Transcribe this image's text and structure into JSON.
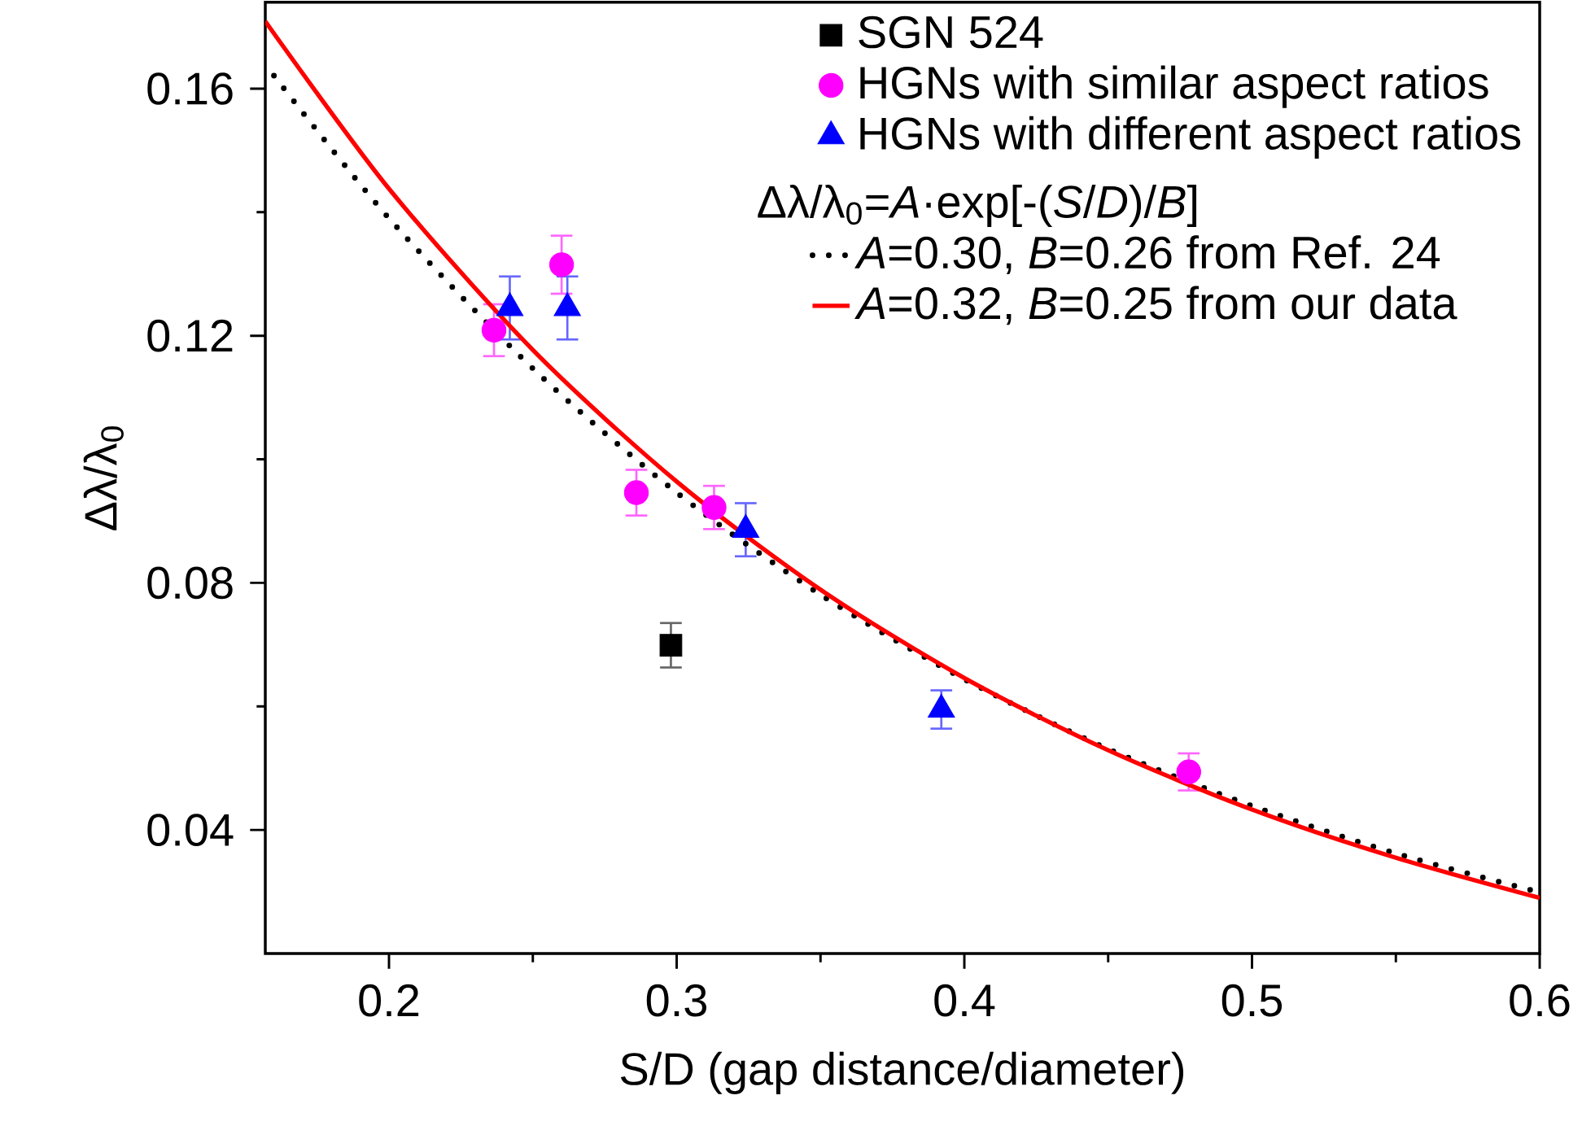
{
  "chart_data": {
    "type": "scatter",
    "xlabel": "S/D (gap distance/diameter)",
    "ylabel": "Δλ/λ$_{0}$",
    "xlim": [
      0.157,
      0.6
    ],
    "ylim": [
      0.02,
      0.174
    ],
    "xticks": [
      0.2,
      0.3,
      0.4,
      0.5,
      0.6
    ],
    "yticks": [
      0.04,
      0.08,
      0.12,
      0.16
    ],
    "legend": "top right",
    "annotations": [
      "Δλ/λ$_{0}$=*A*·exp[-(*S*/*D*)/*B*]"
    ],
    "series": [
      {
        "name": "SGN 524",
        "color": "#000000",
        "marker": "square",
        "x": [
          0.298
        ],
        "values": [
          0.0699
        ],
        "errors": [
          0.0036
        ]
      },
      {
        "name": "HGNs with similar aspect ratios",
        "color": "#ff00ff",
        "marker": "circle",
        "x": [
          0.2365,
          0.26,
          0.286,
          0.313,
          0.478
        ],
        "values": [
          0.1209,
          0.1315,
          0.0946,
          0.0922,
          0.0494
        ],
        "errors": [
          0.0042,
          0.0047,
          0.0037,
          0.0035,
          0.003
        ]
      },
      {
        "name": "HGNs with different aspect ratios",
        "color": "#0000ff",
        "marker": "triangle",
        "x": [
          0.242,
          0.262,
          0.324,
          0.392
        ],
        "values": [
          0.1245,
          0.1245,
          0.0886,
          0.0595
        ],
        "errors": [
          0.0051,
          0.0051,
          0.0043,
          0.0031
        ]
      },
      {
        "name": "*A*=0.30, *B*=0.26 from Ref. 24",
        "type": "line",
        "color": "#000000",
        "marker": "none",
        "line_style": "dotted",
        "x": [
          0.16,
          0.2,
          0.25,
          0.3,
          0.35,
          0.4,
          0.45,
          0.5,
          0.55,
          0.6
        ],
        "values": [
          0.1621,
          0.139,
          0.1147,
          0.0946,
          0.0781,
          0.0644,
          0.0531,
          0.0439,
          0.0362,
          0.0299
        ]
      },
      {
        "name": "*A*=0.32, *B*=0.25 from our data",
        "type": "line",
        "color": "#ff0000",
        "marker": "none",
        "line_style": "solid",
        "x": [
          0.157,
          0.2,
          0.25,
          0.3,
          0.35,
          0.4,
          0.45,
          0.5,
          0.55,
          0.6
        ],
        "values": [
          0.1709,
          0.1438,
          0.1177,
          0.0964,
          0.0789,
          0.0646,
          0.0529,
          0.0433,
          0.0355,
          0.029
        ]
      }
    ]
  }
}
